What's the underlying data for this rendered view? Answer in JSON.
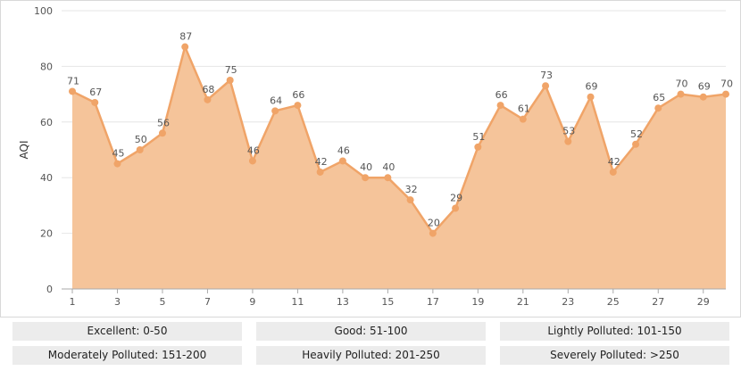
{
  "chart_data": {
    "type": "area",
    "ylabel": "AQI",
    "xlabel": "",
    "title": "",
    "ylim": [
      0,
      100
    ],
    "yticks": [
      0,
      20,
      40,
      60,
      80,
      100
    ],
    "xticks": [
      1,
      3,
      5,
      7,
      9,
      11,
      13,
      15,
      17,
      19,
      21,
      23,
      25,
      27,
      29
    ],
    "x": [
      1,
      2,
      3,
      4,
      5,
      6,
      7,
      8,
      9,
      10,
      11,
      12,
      13,
      14,
      15,
      16,
      17,
      18,
      19,
      20,
      21,
      22,
      23,
      24,
      25,
      26,
      27,
      28,
      29,
      30
    ],
    "values": [
      71,
      67,
      45,
      50,
      56,
      87,
      68,
      75,
      46,
      64,
      66,
      42,
      46,
      40,
      40,
      32,
      20,
      29,
      51,
      66,
      61,
      73,
      53,
      69,
      42,
      52,
      65,
      70,
      69,
      70
    ],
    "grid": true,
    "colors": {
      "fill": "#f5c49a",
      "line": "#f0a468",
      "marker": "#f0a468"
    }
  },
  "legend": {
    "items": [
      "Excellent: 0-50",
      "Good: 51-100",
      "Lightly Polluted: 101-150",
      "Moderately Polluted: 151-200",
      "Heavily Polluted: 201-250",
      "Severely Polluted: >250"
    ]
  }
}
